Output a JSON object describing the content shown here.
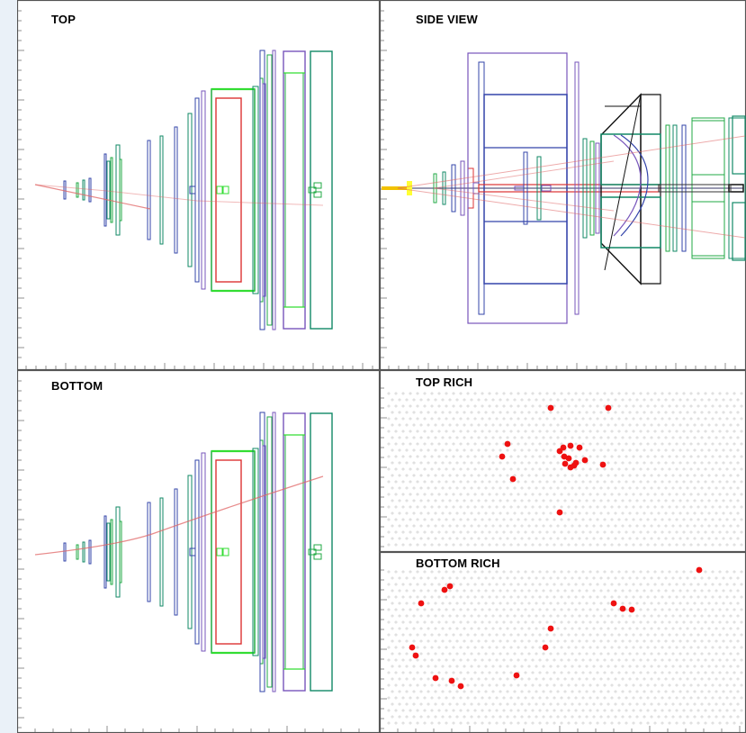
{
  "panels": {
    "top": {
      "title": "TOP"
    },
    "side": {
      "title": "SIDE VIEW"
    },
    "bottom": {
      "title": "BOTTOM"
    },
    "top_rich": {
      "title": "TOP RICH"
    },
    "bottom_rich": {
      "title": "BOTTOM RICH"
    }
  },
  "colors": {
    "frame": "#555555",
    "tick": "#777777",
    "hit": "#ee1111",
    "track": "#e06666",
    "detector_green": "#22aa44",
    "detector_teal": "#118866",
    "detector_blue": "#3344aa",
    "detector_purple": "#7755bb",
    "detector_red": "#dd3333",
    "bright_green": "#33dd33",
    "lattice": "#c8c8c8"
  }
}
